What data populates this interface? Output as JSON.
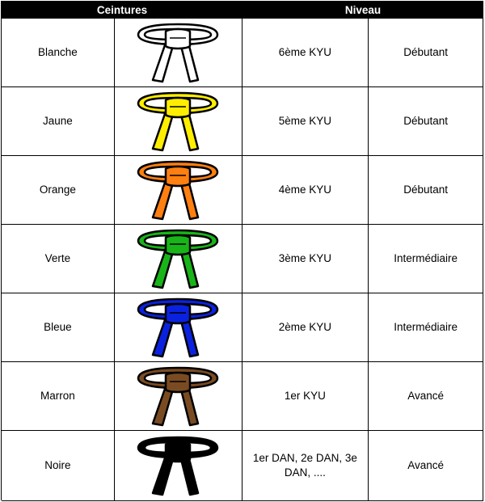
{
  "header": {
    "col1": "Ceintures",
    "col2": "Niveau"
  },
  "rows": [
    {
      "name": "Blanche",
      "color": "#ffffff",
      "grade": "6ème KYU",
      "level": "Débutant"
    },
    {
      "name": "Jaune",
      "color": "#ffee00",
      "grade": "5ème KYU",
      "level": "Débutant"
    },
    {
      "name": "Orange",
      "color": "#ff7f10",
      "grade": "4ème KYU",
      "level": "Débutant"
    },
    {
      "name": "Verte",
      "color": "#18b418",
      "grade": "3ème KYU",
      "level": "Intermédiaire"
    },
    {
      "name": "Bleue",
      "color": "#0a22e0",
      "grade": "2ème KYU",
      "level": "Intermédiaire"
    },
    {
      "name": "Marron",
      "color": "#7a4b22",
      "grade": "1er KYU",
      "level": "Avancé"
    },
    {
      "name": "Noire",
      "color": "#000000",
      "grade": "1er DAN, 2e DAN,    3e\nDAN, ....",
      "level": "Avancé"
    }
  ]
}
